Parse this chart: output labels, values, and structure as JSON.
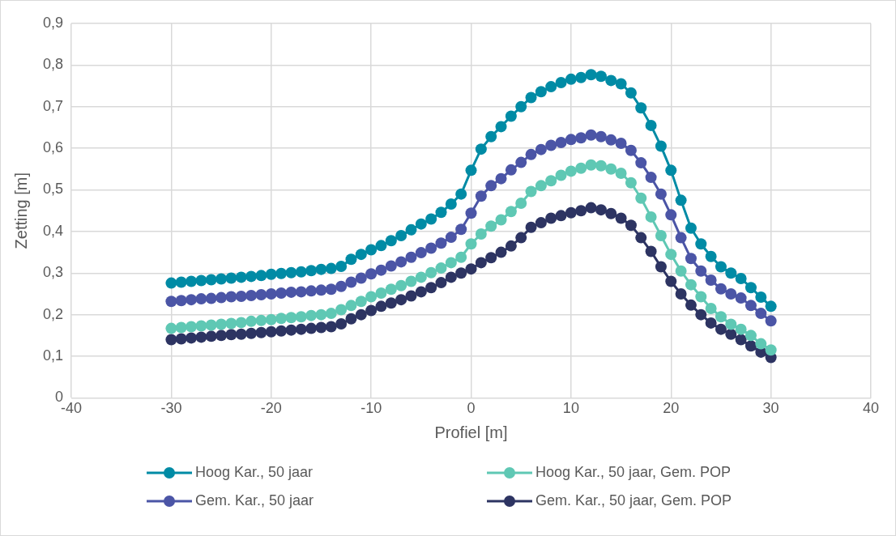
{
  "chart_data": {
    "type": "line",
    "xlabel": "Profiel [m]",
    "ylabel": "Zetting [m]",
    "x": [
      -30,
      -29,
      -28,
      -27,
      -26,
      -25,
      -24,
      -23,
      -22,
      -21,
      -20,
      -19,
      -18,
      -17,
      -16,
      -15,
      -14,
      -13,
      -12,
      -11,
      -10,
      -9,
      -8,
      -7,
      -6,
      -5,
      -4,
      -3,
      -2,
      -1,
      0,
      1,
      2,
      3,
      4,
      5,
      6,
      7,
      8,
      9,
      10,
      11,
      12,
      13,
      14,
      15,
      16,
      17,
      18,
      19,
      20,
      21,
      22,
      23,
      24,
      25,
      26,
      27,
      28,
      29,
      30
    ],
    "xlim": [
      -40,
      40
    ],
    "xticks": [
      -40,
      -30,
      -20,
      -10,
      0,
      10,
      20,
      30,
      40
    ],
    "ylim": [
      0,
      0.9
    ],
    "yticks": [
      {
        "value": 0,
        "label": "0"
      },
      {
        "value": 0.1,
        "label": "0,1"
      },
      {
        "value": 0.2,
        "label": "0,2"
      },
      {
        "value": 0.3,
        "label": "0,3"
      },
      {
        "value": 0.4,
        "label": "0,4"
      },
      {
        "value": 0.5,
        "label": "0,5"
      },
      {
        "value": 0.6,
        "label": "0,6"
      },
      {
        "value": 0.7,
        "label": "0,7"
      },
      {
        "value": 0.8,
        "label": "0,8"
      },
      {
        "value": 0.9,
        "label": "0,9"
      }
    ],
    "grid": true,
    "legend": "bottom",
    "marker": "circle",
    "line_style": "solid",
    "series": [
      {
        "name": "Hoog Kar., 50 jaar",
        "color": "#008ba5",
        "values": [
          0.276,
          0.278,
          0.28,
          0.282,
          0.284,
          0.286,
          0.288,
          0.29,
          0.292,
          0.294,
          0.297,
          0.299,
          0.301,
          0.303,
          0.306,
          0.309,
          0.311,
          0.316,
          0.333,
          0.345,
          0.356,
          0.366,
          0.378,
          0.39,
          0.404,
          0.418,
          0.43,
          0.446,
          0.466,
          0.49,
          0.547,
          0.598,
          0.628,
          0.652,
          0.677,
          0.7,
          0.722,
          0.736,
          0.748,
          0.758,
          0.766,
          0.77,
          0.777,
          0.773,
          0.763,
          0.755,
          0.733,
          0.697,
          0.655,
          0.605,
          0.547,
          0.475,
          0.408,
          0.37,
          0.34,
          0.315,
          0.3,
          0.287,
          0.265,
          0.242,
          0.22
        ]
      },
      {
        "name": "Hoog Kar., 50 jaar, Gem. POP",
        "color": "#5fc8b4",
        "values": [
          0.167,
          0.169,
          0.171,
          0.173,
          0.175,
          0.177,
          0.179,
          0.181,
          0.184,
          0.186,
          0.188,
          0.191,
          0.193,
          0.195,
          0.198,
          0.2,
          0.203,
          0.212,
          0.222,
          0.232,
          0.243,
          0.252,
          0.261,
          0.27,
          0.28,
          0.29,
          0.301,
          0.312,
          0.325,
          0.338,
          0.37,
          0.394,
          0.413,
          0.428,
          0.448,
          0.468,
          0.496,
          0.51,
          0.522,
          0.535,
          0.545,
          0.552,
          0.56,
          0.558,
          0.55,
          0.54,
          0.517,
          0.48,
          0.435,
          0.39,
          0.345,
          0.305,
          0.272,
          0.243,
          0.215,
          0.195,
          0.177,
          0.165,
          0.15,
          0.13,
          0.115
        ]
      },
      {
        "name": "Gem. Kar., 50 jaar",
        "color": "#4b55a6",
        "values": [
          0.232,
          0.234,
          0.236,
          0.238,
          0.239,
          0.241,
          0.243,
          0.244,
          0.246,
          0.248,
          0.25,
          0.252,
          0.254,
          0.255,
          0.257,
          0.259,
          0.261,
          0.268,
          0.278,
          0.288,
          0.298,
          0.307,
          0.317,
          0.327,
          0.338,
          0.349,
          0.36,
          0.372,
          0.386,
          0.405,
          0.444,
          0.485,
          0.51,
          0.527,
          0.548,
          0.566,
          0.585,
          0.597,
          0.607,
          0.614,
          0.621,
          0.625,
          0.632,
          0.628,
          0.62,
          0.612,
          0.595,
          0.565,
          0.53,
          0.49,
          0.44,
          0.385,
          0.335,
          0.305,
          0.283,
          0.262,
          0.25,
          0.24,
          0.222,
          0.203,
          0.185
        ]
      },
      {
        "name": "Gem. Kar., 50 jaar, Gem. POP",
        "color": "#2d3462",
        "values": [
          0.14,
          0.142,
          0.144,
          0.146,
          0.148,
          0.15,
          0.152,
          0.153,
          0.155,
          0.157,
          0.159,
          0.161,
          0.163,
          0.165,
          0.167,
          0.169,
          0.171,
          0.178,
          0.19,
          0.2,
          0.21,
          0.22,
          0.228,
          0.236,
          0.245,
          0.255,
          0.265,
          0.277,
          0.29,
          0.3,
          0.31,
          0.325,
          0.337,
          0.35,
          0.365,
          0.385,
          0.41,
          0.421,
          0.432,
          0.438,
          0.445,
          0.45,
          0.457,
          0.452,
          0.443,
          0.432,
          0.415,
          0.385,
          0.352,
          0.315,
          0.28,
          0.25,
          0.223,
          0.2,
          0.18,
          0.165,
          0.153,
          0.14,
          0.125,
          0.11,
          0.097
        ]
      }
    ]
  }
}
